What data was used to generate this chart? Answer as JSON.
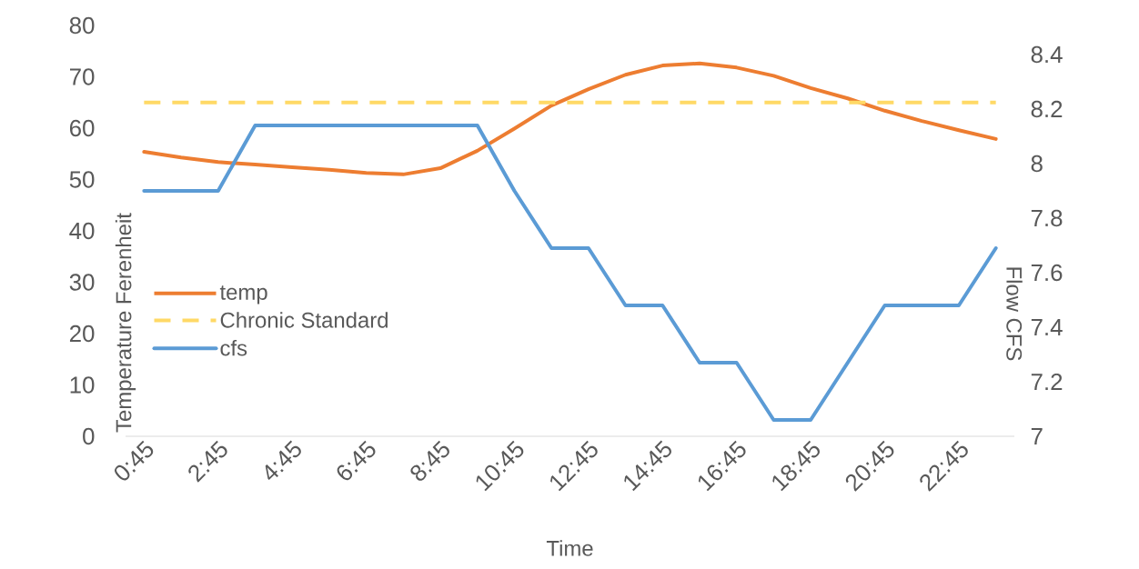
{
  "chart_data": {
    "type": "line",
    "xlabel": "Time",
    "ylabel": "Temperature Ferenheit",
    "y2label": "Flow CFS",
    "categories": [
      "0:45",
      null,
      "2:45",
      null,
      "4:45",
      null,
      "6:45",
      null,
      "8:45",
      null,
      "10:45",
      null,
      "12:45",
      null,
      "14:45",
      null,
      "16:45",
      null,
      "18:45",
      null,
      "20:45",
      null,
      "22:45",
      null
    ],
    "series": [
      {
        "name": "temp",
        "color": "#ed7d31",
        "values": [
          55.4,
          54.3,
          53.4,
          52.9,
          52.4,
          51.9,
          51.3,
          51.0,
          52.2,
          55.6,
          59.9,
          64.4,
          67.6,
          70.4,
          72.2,
          72.6,
          71.8,
          70.2,
          67.8,
          65.8,
          63.4,
          61.4,
          59.6,
          57.9
        ]
      },
      {
        "name": "cfs",
        "color": "#5b9bd5",
        "axis": "y2",
        "values": [
          7.9,
          7.9,
          7.9,
          8.14,
          8.14,
          8.14,
          8.14,
          8.14,
          8.14,
          8.14,
          7.9,
          7.69,
          7.69,
          7.48,
          7.48,
          7.27,
          7.27,
          7.06,
          7.06,
          7.27,
          7.48,
          7.48,
          7.48,
          7.69
        ]
      }
    ],
    "ref_lines": [
      {
        "axis": "y",
        "value": 65,
        "label": "Chronic Standard",
        "color": "#ffd966",
        "line_style": "dashed"
      }
    ],
    "ylim": [
      0,
      80
    ],
    "yticks": [
      0,
      10,
      20,
      30,
      40,
      50,
      60,
      70,
      80
    ],
    "y2lim": [
      7,
      8.4
    ],
    "y2ticks": [
      7,
      7.2,
      7.4,
      7.6,
      7.8,
      8,
      8.2,
      8.4
    ],
    "grid": false,
    "legend": "left",
    "marker": "none",
    "line_style": "solid"
  }
}
